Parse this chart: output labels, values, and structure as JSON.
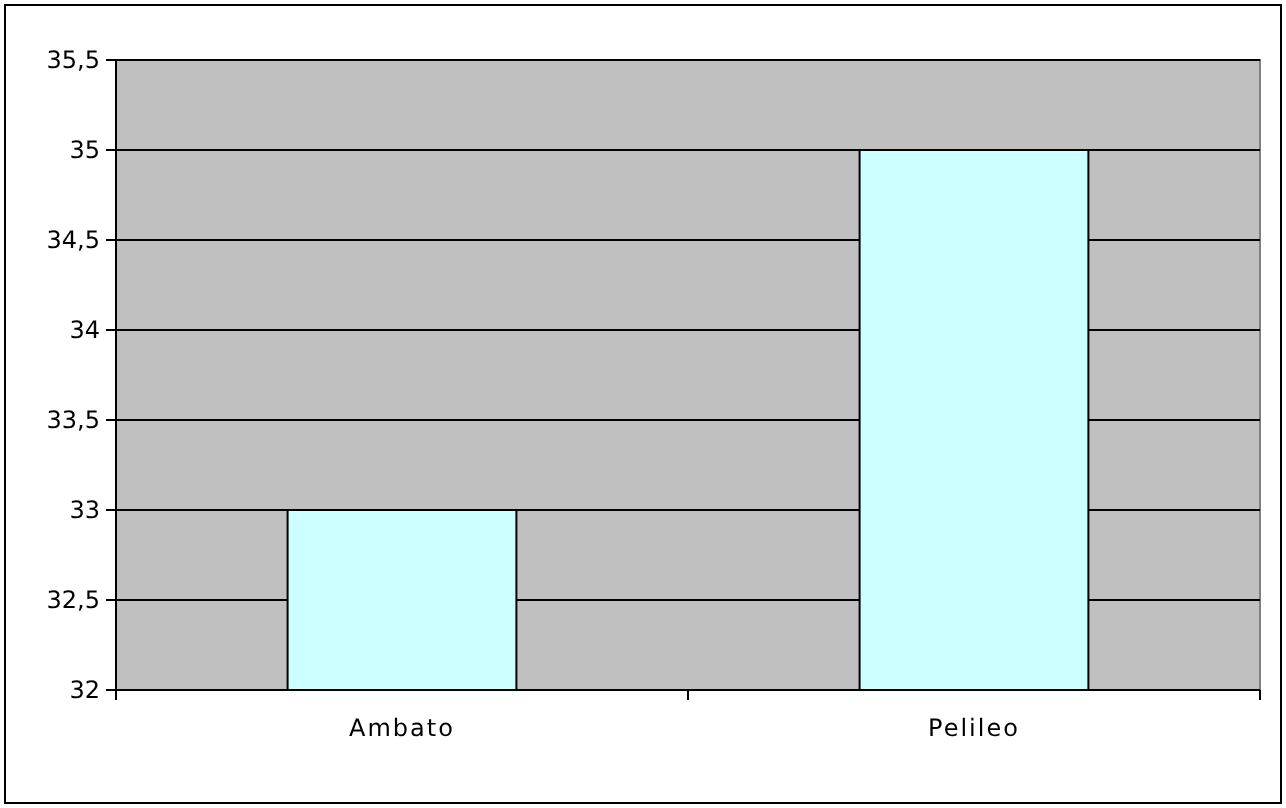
{
  "chart_data": {
    "type": "bar",
    "categories": [
      "Ambato",
      "Pelileo"
    ],
    "values": [
      33,
      35
    ],
    "color": "#ccffff",
    "ylim": [
      32,
      35.5
    ],
    "yticks": [
      32,
      {
        "value": 32.5,
        "label": "32,5"
      },
      33,
      {
        "value": 33.5,
        "label": "33,5"
      },
      34,
      {
        "value": 34.5,
        "label": "34,5"
      },
      35,
      {
        "value": 35.5,
        "label": "35,5"
      }
    ],
    "grid": "y"
  }
}
